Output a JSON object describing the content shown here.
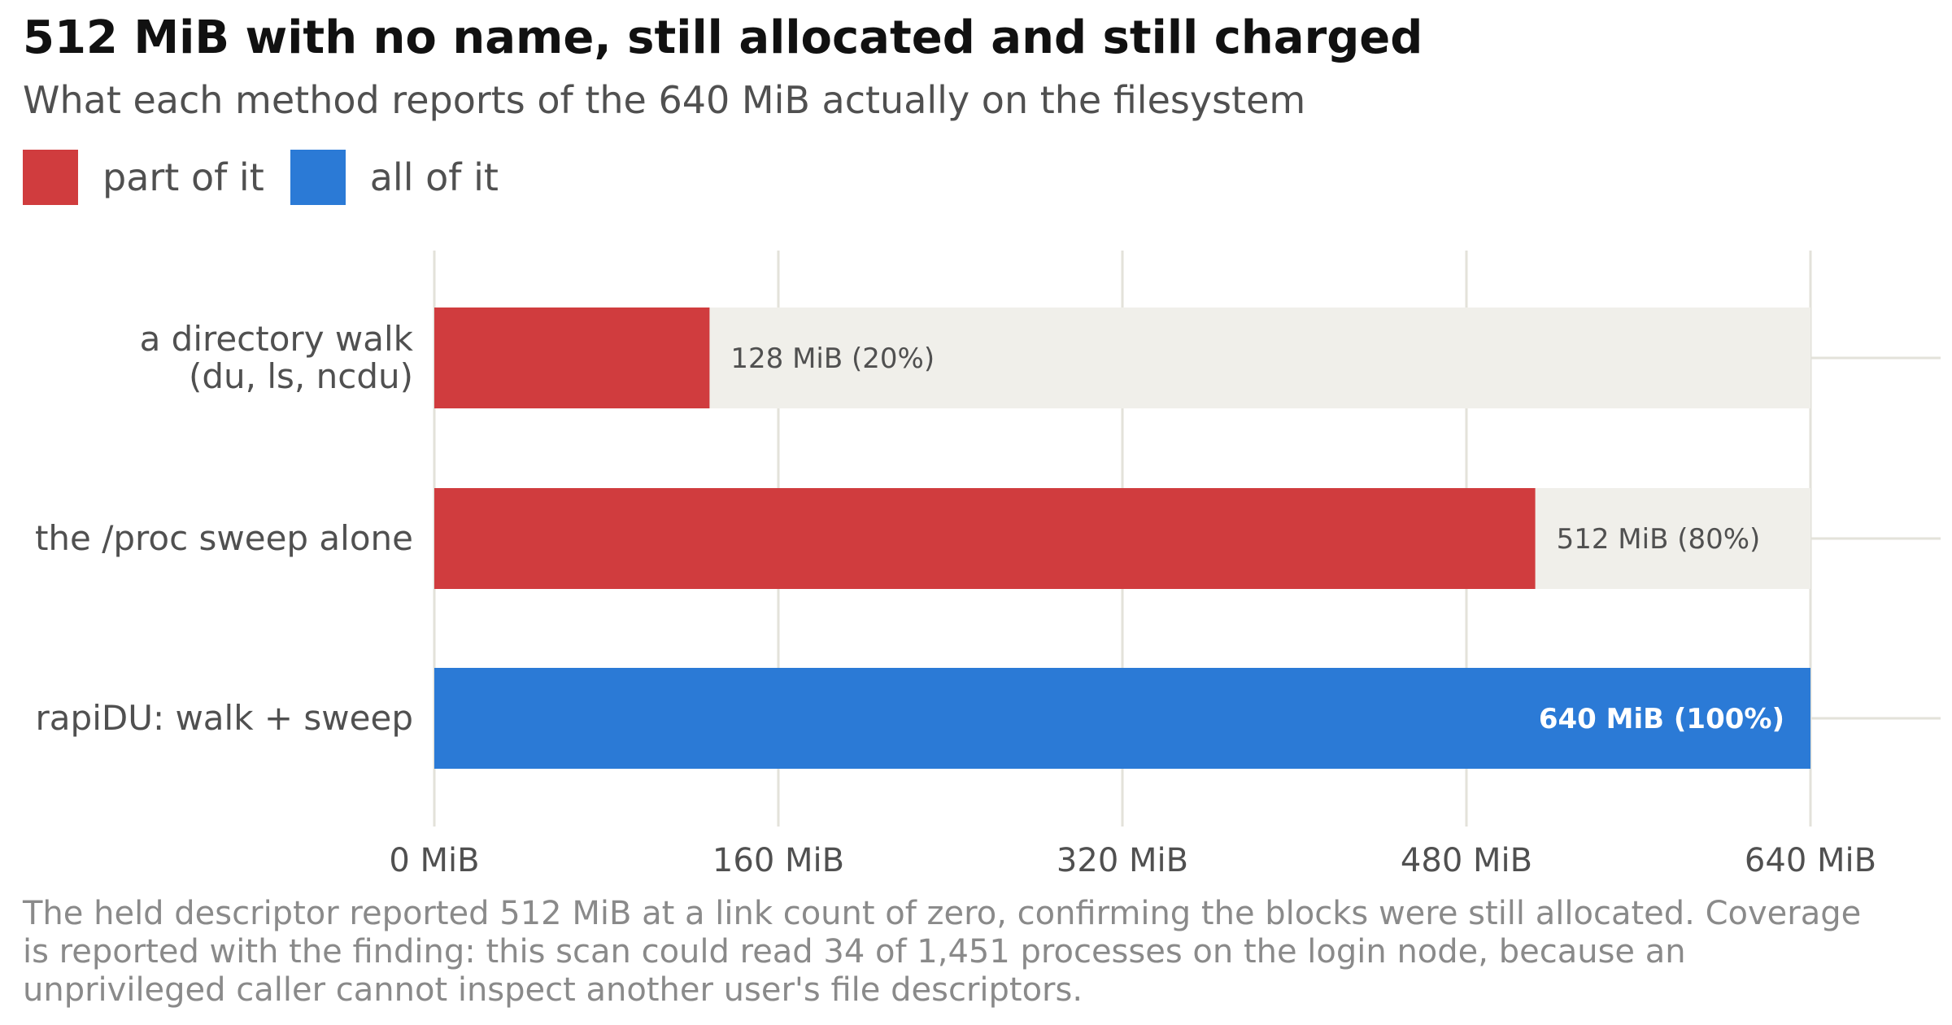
{
  "title": "512 MiB with no name, still allocated and still charged",
  "subtitle": "What each method reports of the 640 MiB actually on the filesystem",
  "legend": [
    {
      "label": "part of it",
      "color": "#d03c3e"
    },
    {
      "label": "all of it",
      "color": "#2b7ad6"
    }
  ],
  "chart_data": {
    "type": "bar",
    "orientation": "horizontal",
    "categories": [
      [
        "a directory walk",
        "(du, ls, ncdu)"
      ],
      [
        "the /proc sweep alone"
      ],
      [
        "rapiDU: walk + sweep"
      ]
    ],
    "values": [
      128,
      512,
      640
    ],
    "value_labels": [
      "128 MiB  (20%)",
      "512 MiB  (80%)",
      "640 MiB  (100%)"
    ],
    "bar_colors": [
      "#d03c3e",
      "#d03c3e",
      "#2b7ad6"
    ],
    "total": 640,
    "xlim": [
      0,
      640
    ],
    "xticks": [
      0,
      160,
      320,
      480,
      640
    ],
    "xtick_labels": [
      "0 MiB",
      "160 MiB",
      "320 MiB",
      "480 MiB",
      "640 MiB"
    ],
    "grid": "vertical",
    "colors": {
      "track": "#f0efea",
      "grid": "#e3e2da",
      "tick_text": "#505050",
      "label_inside": "#ffffff",
      "label_outside": "#505050"
    }
  },
  "note": "The held descriptor reported 512 MiB at a link count of zero, confirming the blocks were still allocated. Coverage is reported with the finding: this scan could read 34 of 1,451 processes on the login node, because an unprivileged caller cannot inspect another user's file descriptors."
}
